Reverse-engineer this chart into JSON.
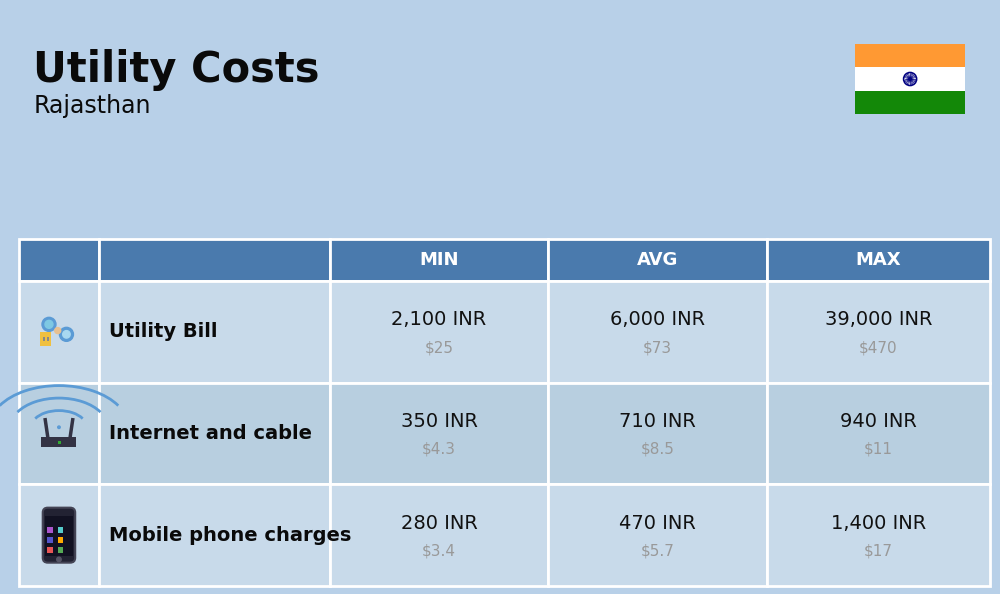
{
  "title": "Utility Costs",
  "subtitle": "Rajasthan",
  "background_color": "#b8d0e8",
  "header_bg_color": "#4a7aad",
  "header_text_color": "#ffffff",
  "row_bg_color_1": "#c8daea",
  "row_bg_color_2": "#b8cfe0",
  "cell_border_color": "#ffffff",
  "title_color": "#0a0a0a",
  "label_color": "#0a0a0a",
  "value_color": "#111111",
  "usd_color": "#999999",
  "headers": [
    "MIN",
    "AVG",
    "MAX"
  ],
  "rows": [
    {
      "label": "Utility Bill",
      "min_inr": "2,100 INR",
      "min_usd": "$25",
      "avg_inr": "6,000 INR",
      "avg_usd": "$73",
      "max_inr": "39,000 INR",
      "max_usd": "$470"
    },
    {
      "label": "Internet and cable",
      "min_inr": "350 INR",
      "min_usd": "$4.3",
      "avg_inr": "710 INR",
      "avg_usd": "$8.5",
      "max_inr": "940 INR",
      "max_usd": "$11"
    },
    {
      "label": "Mobile phone charges",
      "min_inr": "280 INR",
      "min_usd": "$3.4",
      "avg_inr": "470 INR",
      "avg_usd": "$5.7",
      "max_inr": "1,400 INR",
      "max_usd": "$17"
    }
  ],
  "title_fontsize": 30,
  "subtitle_fontsize": 17,
  "header_fontsize": 13,
  "label_fontsize": 14,
  "value_fontsize": 14,
  "usd_fontsize": 11,
  "flag_colors": [
    "#FF9933",
    "#ffffff",
    "#138808"
  ],
  "flag_ashoka": "#000080"
}
